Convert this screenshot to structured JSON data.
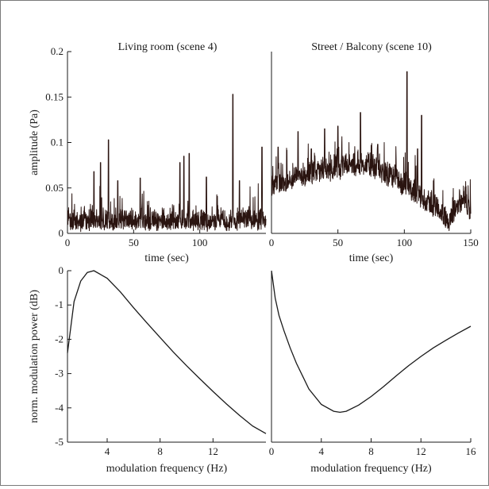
{
  "chart_data": [
    {
      "type": "line",
      "title": "Living room (scene 4)",
      "xlabel": "time (sec)",
      "ylabel": "amplitude (Pa)",
      "xlim": [
        0,
        150
      ],
      "ylim": [
        0,
        0.2
      ],
      "xticks": [
        "0",
        "50",
        "100"
      ],
      "yticks": [
        "0",
        "0.05",
        "0.1",
        "0.15",
        "0.2"
      ],
      "color": "#2a1410",
      "baseline": 0.01,
      "noise": 0.018,
      "spikes": [
        [
          20,
          0.068
        ],
        [
          25,
          0.078
        ],
        [
          31,
          0.103
        ],
        [
          38,
          0.058
        ],
        [
          55,
          0.061
        ],
        [
          85,
          0.078
        ],
        [
          88,
          0.085
        ],
        [
          92,
          0.088
        ],
        [
          105,
          0.062
        ],
        [
          125,
          0.153
        ],
        [
          130,
          0.058
        ],
        [
          147,
          0.095
        ]
      ]
    },
    {
      "type": "line",
      "title": "Street / Balcony (scene 10)",
      "xlabel": "time (sec)",
      "ylabel": "",
      "xlim": [
        0,
        150
      ],
      "ylim": [
        0,
        0.2
      ],
      "xticks": [
        "0",
        "50",
        "100",
        "150"
      ],
      "color": "#2a1410",
      "envelope": [
        [
          0,
          0.05
        ],
        [
          10,
          0.052
        ],
        [
          20,
          0.058
        ],
        [
          30,
          0.062
        ],
        [
          40,
          0.065
        ],
        [
          50,
          0.068
        ],
        [
          60,
          0.07
        ],
        [
          70,
          0.072
        ],
        [
          80,
          0.066
        ],
        [
          90,
          0.058
        ],
        [
          100,
          0.048
        ],
        [
          110,
          0.038
        ],
        [
          120,
          0.028
        ],
        [
          125,
          0.024
        ],
        [
          130,
          0.012
        ],
        [
          135,
          0.01
        ],
        [
          140,
          0.026
        ],
        [
          145,
          0.032
        ],
        [
          150,
          0.02
        ]
      ],
      "noise": 0.02,
      "spikes": [
        [
          5,
          0.095
        ],
        [
          20,
          0.112
        ],
        [
          30,
          0.093
        ],
        [
          40,
          0.115
        ],
        [
          50,
          0.118
        ],
        [
          67,
          0.133
        ],
        [
          80,
          0.098
        ],
        [
          102,
          0.178
        ],
        [
          110,
          0.093
        ],
        [
          113,
          0.13
        ]
      ]
    },
    {
      "type": "line",
      "title": "",
      "xlabel": "modulation frequency (Hz)",
      "ylabel": "norm. modulation power (dB)",
      "xlim": [
        1,
        16
      ],
      "ylim": [
        -5,
        0
      ],
      "xticks": [
        "4",
        "8",
        "12"
      ],
      "yticks": [
        "-5",
        "-4",
        "-3",
        "-2",
        "-1",
        "0"
      ],
      "series": [
        {
          "x": [
            1,
            1.5,
            2,
            2.5,
            3,
            4,
            5,
            6,
            7,
            8,
            9,
            10,
            11,
            12,
            13,
            14,
            15,
            16
          ],
          "y": [
            -2.4,
            -0.9,
            -0.3,
            -0.05,
            0,
            -0.22,
            -0.62,
            -1.08,
            -1.52,
            -1.95,
            -2.37,
            -2.77,
            -3.15,
            -3.52,
            -3.88,
            -4.22,
            -4.53,
            -4.75
          ]
        }
      ]
    },
    {
      "type": "line",
      "title": "",
      "xlabel": "modulation frequency (Hz)",
      "ylabel": "",
      "xlim": [
        0,
        16
      ],
      "ylim": [
        -5,
        0
      ],
      "xticks": [
        "0",
        "4",
        "8",
        "12",
        "16"
      ],
      "series": [
        {
          "x": [
            0,
            0.3,
            0.6,
            1,
            1.5,
            2,
            3,
            4,
            5,
            5.5,
            6,
            7,
            8,
            9,
            10,
            11,
            12,
            13,
            14,
            15,
            16
          ],
          "y": [
            0,
            -0.8,
            -1.3,
            -1.75,
            -2.25,
            -2.7,
            -3.45,
            -3.9,
            -4.1,
            -4.13,
            -4.1,
            -3.92,
            -3.67,
            -3.38,
            -3.07,
            -2.77,
            -2.5,
            -2.25,
            -2.03,
            -1.82,
            -1.62
          ]
        }
      ]
    }
  ]
}
